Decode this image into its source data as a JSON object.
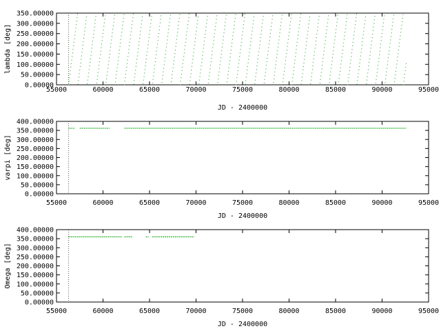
{
  "chart_data": [
    {
      "type": "scatter",
      "xlabel": "JD - 2400000",
      "ylabel": "lambda [deg]",
      "xlim": [
        55000,
        95000
      ],
      "ylim": [
        0,
        350
      ],
      "x_ticks": [
        "55000",
        "60000",
        "65000",
        "70000",
        "75000",
        "80000",
        "85000",
        "90000",
        "95000"
      ],
      "y_ticks": [
        "0.00000",
        "50.00000",
        "100.00000",
        "150.00000",
        "200.00000",
        "250.00000",
        "300.00000",
        "350.00000"
      ],
      "marker_x": 56300,
      "grid": false,
      "series": [
        {
          "pattern": "sawtooth",
          "x_range": [
            56300,
            92600
          ],
          "period_days": 1000,
          "sample_days": 48,
          "y_range": [
            0,
            360
          ],
          "color": "#00a000"
        }
      ]
    },
    {
      "type": "scatter",
      "xlabel": "JD - 2400000",
      "ylabel": "varpi [deg]",
      "xlim": [
        55000,
        95000
      ],
      "ylim": [
        0,
        400
      ],
      "x_ticks": [
        "55000",
        "60000",
        "65000",
        "70000",
        "75000",
        "80000",
        "85000",
        "90000",
        "95000"
      ],
      "y_ticks": [
        "0.00000",
        "50.00000",
        "100.00000",
        "150.00000",
        "200.00000",
        "250.00000",
        "300.00000",
        "350.00000",
        "400.00000"
      ],
      "marker_x": 56300,
      "grid": false,
      "series": [
        {
          "pattern": "segments",
          "color": "#00a000",
          "segments": [
            {
              "x": [
                56300,
                57000
              ],
              "y": 362
            },
            {
              "x": [
                57500,
                60700
              ],
              "y": 362
            },
            {
              "x": [
                62300,
                92600
              ],
              "y": 362
            }
          ]
        }
      ]
    },
    {
      "type": "scatter",
      "xlabel": "JD - 2400000",
      "ylabel": "Omega [deg]",
      "xlim": [
        55000,
        95000
      ],
      "ylim": [
        0,
        400
      ],
      "x_ticks": [
        "55000",
        "60000",
        "65000",
        "70000",
        "75000",
        "80000",
        "85000",
        "90000",
        "95000"
      ],
      "y_ticks": [
        "0.00000",
        "50.00000",
        "100.00000",
        "150.00000",
        "200.00000",
        "250.00000",
        "300.00000",
        "350.00000",
        "400.00000"
      ],
      "marker_x": 56300,
      "grid": false,
      "series": [
        {
          "pattern": "segments",
          "color": "#00a000",
          "segments": [
            {
              "x": [
                56300,
                62000
              ],
              "y": 360
            },
            {
              "x": [
                62300,
                63200
              ],
              "y": 360
            },
            {
              "x": [
                64600,
                64900
              ],
              "y": 360
            },
            {
              "x": [
                65300,
                69800
              ],
              "y": 360
            }
          ]
        }
      ]
    }
  ]
}
